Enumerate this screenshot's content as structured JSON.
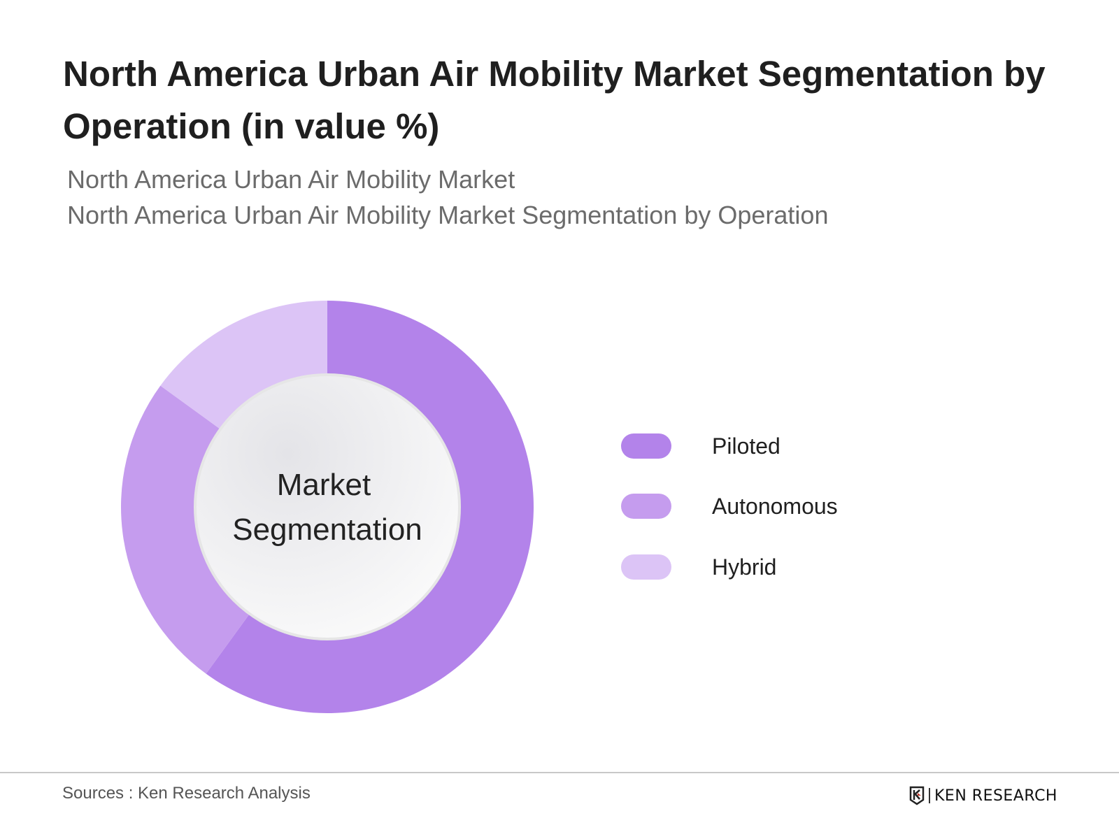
{
  "header": {
    "title": "North America Urban Air Mobility Market Segmentation by Operation (in value %)",
    "subtitle_1": "North America Urban Air Mobility Market",
    "subtitle_2": "North America Urban Air Mobility Market Segmentation by Operation"
  },
  "chart_data": {
    "type": "pie",
    "variant": "donut",
    "center_label": [
      "Market",
      "Segmentation"
    ],
    "categories": [
      "Piloted",
      "Autonomous",
      "Hybrid"
    ],
    "values": [
      60,
      25,
      15
    ],
    "colors": [
      "#b383ea",
      "#c59cee",
      "#dcc4f6"
    ],
    "legend_position": "right"
  },
  "footer": {
    "source": "Sources : Ken Research Analysis",
    "logo_text": "KEN RESEARCH"
  }
}
